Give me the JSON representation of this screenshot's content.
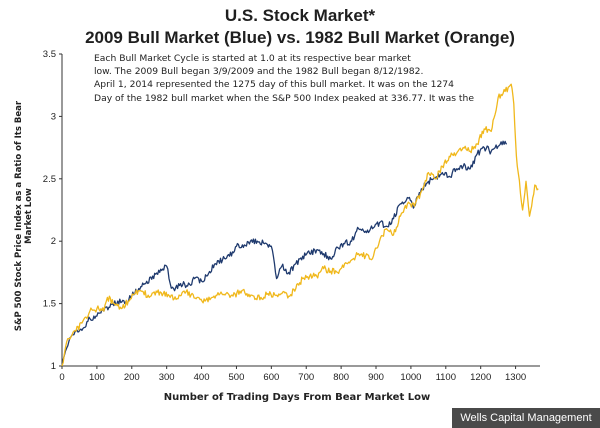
{
  "header": {
    "title_line1": "U.S. Stock Market*",
    "title_line2": "2009 Bull Market (Blue) vs. 1982 Bull Market (Orange)"
  },
  "note_lines": [
    "Each Bull Market Cycle is started at 1.0 at its respective bear market",
    "low.  The 2009 Bull began 3/9/2009 and the 1982 Bull began 8/12/1982.",
    "April 1, 2014 represented the 1275 day of this bull market.  It  was on the 1274",
    "Day of the 1982 bull market when the S&P 500 Index peaked at 336.77.  It was the"
  ],
  "footer": {
    "source": "Wells Capital Management"
  },
  "chart_data": {
    "type": "line",
    "xlabel": "Number of Trading Days From Bear Market Low",
    "ylabel": "S&P 500 Stock Price Index as a Ratio of Its Bear Market Low",
    "xlim": [
      0,
      1370
    ],
    "ylim": [
      1,
      3.5
    ],
    "x_ticks": [
      0,
      100,
      200,
      300,
      400,
      500,
      600,
      700,
      800,
      900,
      1000,
      1100,
      1200,
      1300
    ],
    "y_ticks": [
      1,
      1.5,
      2,
      2.5,
      3,
      3.5
    ],
    "y_tick_labels": [
      "1",
      "1.5",
      "2",
      "2.5",
      "3",
      "3.5"
    ],
    "grid": false,
    "series": [
      {
        "color": "#1f3a6e",
        "x": [
          0,
          10,
          20,
          40,
          60,
          80,
          100,
          120,
          140,
          160,
          180,
          200,
          220,
          240,
          260,
          280,
          300,
          310,
          320,
          340,
          360,
          380,
          400,
          420,
          440,
          460,
          480,
          500,
          520,
          540,
          560,
          580,
          600,
          615,
          630,
          650,
          670,
          690,
          710,
          730,
          750,
          770,
          790,
          810,
          830,
          850,
          870,
          890,
          910,
          930,
          950,
          970,
          990,
          1010,
          1030,
          1050,
          1070,
          1090,
          1110,
          1130,
          1150,
          1170,
          1190,
          1210,
          1230,
          1250,
          1270,
          1275
        ],
        "y": [
          1.0,
          1.12,
          1.2,
          1.28,
          1.3,
          1.38,
          1.4,
          1.44,
          1.5,
          1.52,
          1.5,
          1.56,
          1.62,
          1.66,
          1.72,
          1.75,
          1.8,
          1.66,
          1.62,
          1.66,
          1.64,
          1.7,
          1.68,
          1.74,
          1.82,
          1.85,
          1.88,
          1.96,
          1.95,
          2.0,
          2.0,
          1.98,
          1.96,
          1.7,
          1.8,
          1.75,
          1.82,
          1.88,
          1.9,
          1.93,
          1.9,
          1.86,
          1.95,
          1.98,
          2.0,
          2.1,
          2.08,
          2.1,
          2.15,
          2.12,
          2.18,
          2.3,
          2.35,
          2.28,
          2.42,
          2.48,
          2.5,
          2.55,
          2.52,
          2.58,
          2.6,
          2.58,
          2.7,
          2.75,
          2.72,
          2.76,
          2.8,
          2.78
        ]
      },
      {
        "color": "#f0b81c",
        "x": [
          0,
          10,
          20,
          40,
          60,
          80,
          100,
          120,
          130,
          150,
          170,
          190,
          210,
          230,
          250,
          270,
          290,
          310,
          330,
          350,
          370,
          390,
          410,
          430,
          450,
          470,
          490,
          510,
          530,
          550,
          570,
          590,
          610,
          630,
          650,
          670,
          690,
          710,
          730,
          750,
          770,
          790,
          810,
          830,
          850,
          870,
          890,
          910,
          930,
          950,
          970,
          990,
          1010,
          1030,
          1050,
          1070,
          1090,
          1110,
          1130,
          1150,
          1170,
          1190,
          1210,
          1230,
          1250,
          1270,
          1285,
          1290,
          1295,
          1300,
          1305,
          1320,
          1330,
          1340,
          1355,
          1365
        ],
        "y": [
          1.0,
          1.15,
          1.22,
          1.28,
          1.36,
          1.44,
          1.46,
          1.44,
          1.55,
          1.5,
          1.46,
          1.52,
          1.58,
          1.6,
          1.55,
          1.6,
          1.58,
          1.55,
          1.54,
          1.6,
          1.57,
          1.55,
          1.52,
          1.55,
          1.57,
          1.58,
          1.56,
          1.6,
          1.58,
          1.56,
          1.55,
          1.58,
          1.57,
          1.58,
          1.56,
          1.62,
          1.7,
          1.72,
          1.72,
          1.78,
          1.76,
          1.75,
          1.82,
          1.85,
          1.9,
          1.88,
          1.86,
          2.0,
          2.1,
          2.05,
          2.2,
          2.3,
          2.28,
          2.4,
          2.55,
          2.5,
          2.6,
          2.68,
          2.7,
          2.75,
          2.72,
          2.78,
          2.9,
          2.88,
          3.15,
          3.2,
          3.25,
          3.22,
          3.1,
          2.8,
          2.6,
          2.25,
          2.48,
          2.2,
          2.45,
          2.42
        ]
      }
    ]
  }
}
